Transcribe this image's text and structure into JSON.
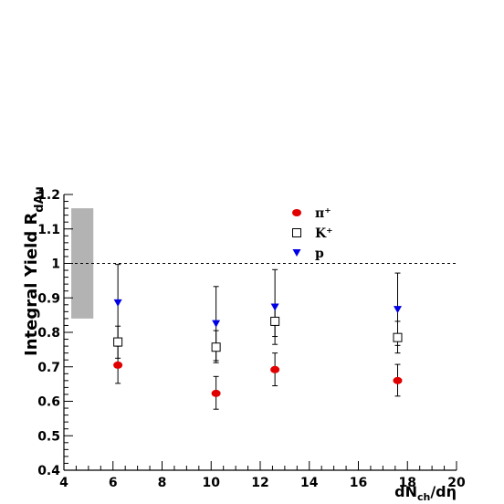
{
  "chart_data": {
    "type": "scatter",
    "xlabel": "dN_ch/dη",
    "ylabel": "Integral Yield R_dAu",
    "xlim": [
      4,
      20
    ],
    "ylim": [
      0.4,
      1.2
    ],
    "x_ticks": [
      "4",
      "6",
      "8",
      "10",
      "12",
      "14",
      "16",
      "18",
      "20"
    ],
    "y_ticks": [
      "0.4",
      "0.5",
      "0.6",
      "0.7",
      "0.8",
      "0.9",
      "1",
      "1.1",
      "1.2"
    ],
    "reference_line": 1.0,
    "systematic_band": {
      "x": [
        4.3,
        5.2
      ],
      "y": [
        0.84,
        1.16
      ],
      "color": "#b3b3b3"
    },
    "legend_position": "top-center",
    "series": [
      {
        "name": "π⁺",
        "marker": "filled-circle",
        "color": "#e00000",
        "points": [
          {
            "x": 6.2,
            "y": 0.705,
            "ylo": 0.652,
            "yhi": 0.76
          },
          {
            "x": 10.2,
            "y": 0.623,
            "ylo": 0.577,
            "yhi": 0.672
          },
          {
            "x": 12.6,
            "y": 0.692,
            "ylo": 0.645,
            "yhi": 0.74
          },
          {
            "x": 17.6,
            "y": 0.66,
            "ylo": 0.615,
            "yhi": 0.707
          }
        ]
      },
      {
        "name": "K⁺",
        "marker": "open-square",
        "color": "#000000",
        "points": [
          {
            "x": 6.2,
            "y": 0.772,
            "ylo": 0.725,
            "yhi": 0.818
          },
          {
            "x": 10.2,
            "y": 0.757,
            "ylo": 0.712,
            "yhi": 0.805
          },
          {
            "x": 12.6,
            "y": 0.832,
            "ylo": 0.788,
            "yhi": 0.878
          },
          {
            "x": 17.6,
            "y": 0.785,
            "ylo": 0.74,
            "yhi": 0.832
          }
        ]
      },
      {
        "name": "p",
        "marker": "filled-triangle-down",
        "color": "#0000e6",
        "points": [
          {
            "x": 6.2,
            "y": 0.885,
            "ylo": 0.775,
            "yhi": 0.997
          },
          {
            "x": 10.2,
            "y": 0.825,
            "ylo": 0.718,
            "yhi": 0.933
          },
          {
            "x": 12.6,
            "y": 0.873,
            "ylo": 0.765,
            "yhi": 0.982
          },
          {
            "x": 17.6,
            "y": 0.866,
            "ylo": 0.762,
            "yhi": 0.972
          }
        ]
      }
    ]
  }
}
